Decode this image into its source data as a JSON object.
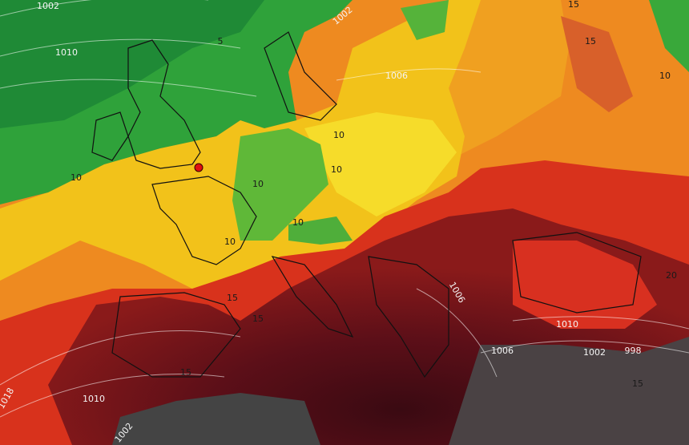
{
  "labels": [
    "1002",
    "1010",
    "5",
    "1002",
    "15",
    "15",
    "10",
    "1006",
    "10",
    "10",
    "10",
    "10",
    "10",
    "10",
    "15",
    "15",
    "15",
    "20",
    "1006",
    "1010",
    "1006",
    "1002",
    "998",
    "1018",
    "1010",
    "15",
    "1002"
  ]
}
